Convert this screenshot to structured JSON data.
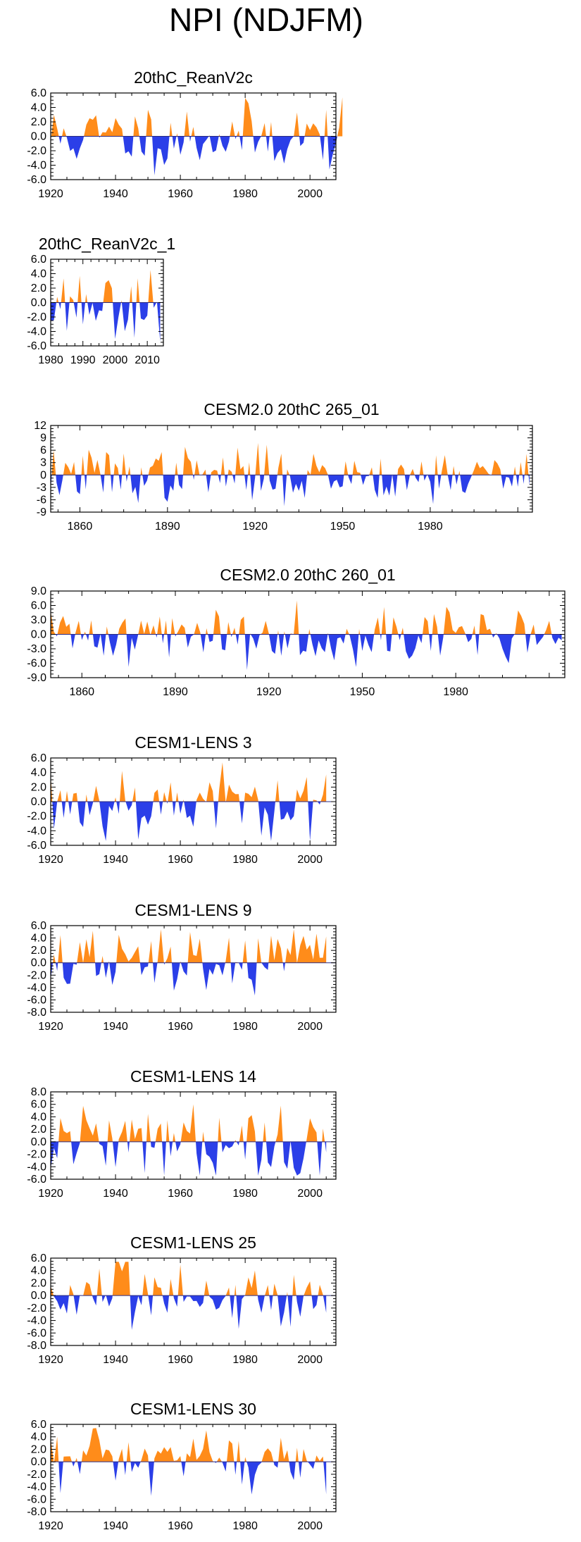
{
  "page_title": "NPI (NDJFM)",
  "colors": {
    "positive": "#ff8c1a",
    "negative": "#2b3fe8",
    "axis": "#000000",
    "zero_line": "#2a2a80"
  },
  "chart_data": [
    {
      "type": "area",
      "title": "20thC_ReanV2c",
      "x_start": 1920,
      "x_end": 2010,
      "x_ticks": [
        1920,
        1940,
        1960,
        1980,
        2000
      ],
      "xlim": [
        1920,
        2008
      ],
      "ylim": [
        -6,
        6
      ],
      "y_ticks": [
        6,
        4,
        2,
        0,
        -2,
        -4,
        -6
      ],
      "y_tick_labels": [
        "6.0",
        "4.0",
        "2.0",
        "0.0",
        "-2.0",
        "-4.0",
        "-6.0"
      ],
      "xlabel": "",
      "ylabel": "",
      "seed": 11,
      "amp": 2.3
    },
    {
      "type": "area",
      "title": "20thC_ReanV2c_1",
      "x_start": 1980,
      "x_end": 2014,
      "x_ticks": [
        1980,
        1990,
        2000,
        2010
      ],
      "xlim": [
        1980,
        2015
      ],
      "ylim": [
        -6,
        6
      ],
      "y_ticks": [
        6,
        4,
        2,
        0,
        -2,
        -4,
        -6
      ],
      "y_tick_labels": [
        "6.0",
        "4.0",
        "2.0",
        "0.0",
        "-2.0",
        "-4.0",
        "-6.0"
      ],
      "xlabel": "",
      "ylabel": "",
      "seed": 23,
      "amp": 2.3
    },
    {
      "type": "area",
      "title": "CESM2.0 20thC 265_01",
      "x_start": 1850,
      "x_end": 2014,
      "x_ticks": [
        1860,
        1890,
        1920,
        1950,
        1980
      ],
      "xlim": [
        1850,
        2015
      ],
      "ylim": [
        -9,
        12
      ],
      "y_ticks": [
        12,
        9,
        6,
        3,
        0,
        -3,
        -6,
        -9
      ],
      "y_tick_labels": [
        "12",
        "9",
        "6",
        "3",
        "0",
        "-3",
        "-6",
        "-9"
      ],
      "xlabel": "",
      "ylabel": "",
      "seed": 37,
      "amp": 3.2
    },
    {
      "type": "area",
      "title": "CESM2.0 20thC 260_01",
      "x_start": 1850,
      "x_end": 2014,
      "x_ticks": [
        1860,
        1890,
        1920,
        1950,
        1980
      ],
      "xlim": [
        1850,
        2015
      ],
      "ylim": [
        -9,
        9
      ],
      "y_ticks": [
        9,
        6,
        3,
        0,
        -3,
        -6,
        -9
      ],
      "y_tick_labels": [
        "9.0",
        "6.0",
        "3.0",
        "0.0",
        "-3.0",
        "-6.0",
        "-9.0"
      ],
      "xlabel": "",
      "ylabel": "",
      "seed": 41,
      "amp": 2.9
    },
    {
      "type": "area",
      "title": "CESM1-LENS 3",
      "x_start": 1920,
      "x_end": 2005,
      "x_ticks": [
        1920,
        1940,
        1960,
        1980,
        2000
      ],
      "xlim": [
        1920,
        2008
      ],
      "ylim": [
        -6,
        6
      ],
      "y_ticks": [
        6,
        4,
        2,
        0,
        -2,
        -4,
        -6
      ],
      "y_tick_labels": [
        "6.0",
        "4.0",
        "2.0",
        "0.0",
        "-2.0",
        "-4.0",
        "-6.0"
      ],
      "xlabel": "",
      "ylabel": "",
      "seed": 53,
      "amp": 2.6
    },
    {
      "type": "area",
      "title": "CESM1-LENS 9",
      "x_start": 1920,
      "x_end": 2005,
      "x_ticks": [
        1920,
        1940,
        1960,
        1980,
        2000
      ],
      "xlim": [
        1920,
        2008
      ],
      "ylim": [
        -8,
        6
      ],
      "y_ticks": [
        6,
        4,
        2,
        0,
        -2,
        -4,
        -6,
        -8
      ],
      "y_tick_labels": [
        "6.0",
        "4.0",
        "2.0",
        "0.0",
        "-2.0",
        "-4.0",
        "-6.0",
        "-8.0"
      ],
      "xlabel": "",
      "ylabel": "",
      "seed": 67,
      "amp": 2.6
    },
    {
      "type": "area",
      "title": "CESM1-LENS 14",
      "x_start": 1920,
      "x_end": 2005,
      "x_ticks": [
        1920,
        1940,
        1960,
        1980,
        2000
      ],
      "xlim": [
        1920,
        2008
      ],
      "ylim": [
        -6,
        8
      ],
      "y_ticks": [
        8,
        6,
        4,
        2,
        0,
        -2,
        -4,
        -6
      ],
      "y_tick_labels": [
        "8.0",
        "6.0",
        "4.0",
        "2.0",
        "0.0",
        "-2.0",
        "-4.0",
        "-6.0"
      ],
      "xlabel": "",
      "ylabel": "",
      "seed": 79,
      "amp": 2.8
    },
    {
      "type": "area",
      "title": "CESM1-LENS 25",
      "x_start": 1920,
      "x_end": 2005,
      "x_ticks": [
        1920,
        1940,
        1960,
        1980,
        2000
      ],
      "xlim": [
        1920,
        2008
      ],
      "ylim": [
        -8,
        6
      ],
      "y_ticks": [
        6,
        4,
        2,
        0,
        -2,
        -4,
        -6,
        -8
      ],
      "y_tick_labels": [
        "6.0",
        "4.0",
        "2.0",
        "0.0",
        "-2.0",
        "-4.0",
        "-6.0",
        "-8.0"
      ],
      "xlabel": "",
      "ylabel": "",
      "seed": 83,
      "amp": 2.6
    },
    {
      "type": "area",
      "title": "CESM1-LENS 30",
      "x_start": 1920,
      "x_end": 2005,
      "x_ticks": [
        1920,
        1940,
        1960,
        1980,
        2000
      ],
      "xlim": [
        1920,
        2008
      ],
      "ylim": [
        -8,
        6
      ],
      "y_ticks": [
        6,
        4,
        2,
        0,
        -2,
        -4,
        -6,
        -8
      ],
      "y_tick_labels": [
        "6.0",
        "4.0",
        "2.0",
        "0.0",
        "-2.0",
        "-4.0",
        "-6.0",
        "-8.0"
      ],
      "xlabel": "",
      "ylabel": "",
      "seed": 97,
      "amp": 2.6
    }
  ]
}
